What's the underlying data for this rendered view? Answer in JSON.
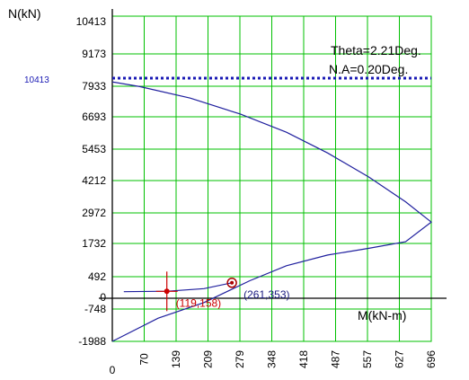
{
  "chart_data": {
    "type": "line",
    "xlabel": "M(kN-m)",
    "ylabel": "N(kN)",
    "x_ticks": [
      "0",
      "70",
      "139",
      "209",
      "279",
      "348",
      "418",
      "487",
      "557",
      "627",
      "696"
    ],
    "y_ticks": [
      "10413",
      "9173",
      "7933",
      "6693",
      "5453",
      "4212",
      "2972",
      "1732",
      "492",
      "0",
      "-748",
      "-1988"
    ],
    "xlim": [
      0,
      696
    ],
    "ylim": [
      -1988,
      10413
    ],
    "grid": true,
    "annotations": [
      "Theta=2.21Deg.",
      "N.A=0.20Deg."
    ],
    "reference_line": {
      "label": "10413",
      "y": 10413,
      "style": "dotted",
      "color": "#1a1ab4"
    },
    "series": [
      {
        "color": "#1f1f9e",
        "points": [
          [
            0,
            -1988
          ],
          [
            100,
            -1100
          ],
          [
            200,
            -300
          ],
          [
            300,
            400
          ],
          [
            380,
            900
          ],
          [
            470,
            1300
          ],
          [
            560,
            1550
          ],
          [
            640,
            1800
          ],
          [
            696,
            2600
          ],
          [
            640,
            3400
          ],
          [
            560,
            4350
          ],
          [
            470,
            5300
          ],
          [
            380,
            6100
          ],
          [
            280,
            6800
          ],
          [
            170,
            7450
          ],
          [
            60,
            7920
          ],
          [
            0,
            8100
          ]
        ]
      },
      {
        "color": "#1f1f9e",
        "points": [
          [
            25,
            150
          ],
          [
            120,
            160
          ],
          [
            200,
            220
          ],
          [
            261,
            353
          ]
        ]
      }
    ],
    "points": [
      {
        "label": "(119,158)",
        "x": 119,
        "y": 158,
        "color": "#cc0000"
      },
      {
        "label": "(261,353)",
        "x": 261,
        "y": 353,
        "color": "#1a1a80"
      }
    ]
  }
}
